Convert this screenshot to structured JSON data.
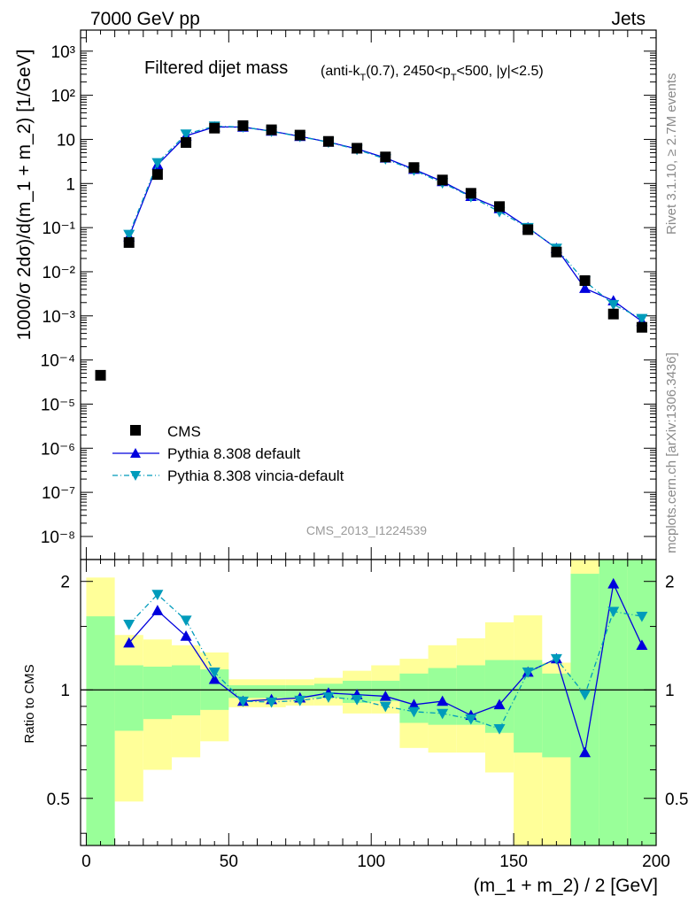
{
  "header": {
    "left": "7000 GeV pp",
    "right": "Jets"
  },
  "side": {
    "rivet": "Rivet 3.1.10, ≥ 2.7M events",
    "mcplots": "mcplots.cern.ch [arXiv:1306.3436]"
  },
  "watermark": "CMS_2013_I1224539",
  "colors": {
    "cms": "#000000",
    "pythia": "#0000dd",
    "vincia": "#009bbb",
    "band_yellow": "#ffff99",
    "band_green": "#99ff99"
  },
  "chart_data": [
    {
      "type": "scatter",
      "title": "Filtered dijet mass",
      "title_suffix": "(anti-k_T(0.7), 2450<p_T<500, |y|<2.5)",
      "ylabel": "1000/σ 2dσ)/d(m_1 + m_2) [1/GeV]",
      "xlim": [
        -2,
        200
      ],
      "ylim": [
        3e-09,
        3000
      ],
      "yscale": "log",
      "yticks": [
        "10⁻⁸",
        "10⁻⁷",
        "10⁻⁶",
        "10⁻⁵",
        "10⁻⁴",
        "10⁻³",
        "10⁻²",
        "10⁻¹",
        "1",
        "10",
        "10²",
        "10³"
      ],
      "legend": [
        "CMS",
        "Pythia 8.308 default",
        "Pythia 8.308 vincia-default"
      ],
      "legend_position": "bottom-left",
      "x": [
        5,
        15,
        25,
        35,
        45,
        55,
        65,
        75,
        85,
        95,
        105,
        115,
        125,
        135,
        145,
        155,
        165,
        175,
        185,
        195
      ],
      "series": [
        {
          "name": "CMS",
          "marker": "square",
          "values": [
            4.5e-05,
            0.046,
            1.6,
            8.5,
            18,
            20.5,
            16.5,
            12.5,
            9.0,
            6.3,
            4.0,
            2.3,
            1.2,
            0.6,
            0.3,
            0.09,
            0.028,
            0.0063,
            0.0011,
            0.00055
          ]
        },
        {
          "name": "Pythia 8.308 default",
          "marker": "triangle-up",
          "line": "solid",
          "x": [
            15,
            25,
            35,
            45,
            55,
            65,
            75,
            85,
            95,
            105,
            115,
            125,
            135,
            145,
            155,
            165,
            175,
            185,
            195
          ],
          "values": [
            0.062,
            2.65,
            12.0,
            19.2,
            19.0,
            15.4,
            11.7,
            8.7,
            6.1,
            3.8,
            2.1,
            1.11,
            0.51,
            0.27,
            0.1,
            0.034,
            0.0042,
            0.0022,
            0.00075
          ]
        },
        {
          "name": "Pythia 8.308 vincia-default",
          "marker": "triangle-down",
          "line": "dash-dot",
          "x": [
            15,
            25,
            35,
            45,
            55,
            65,
            75,
            85,
            95,
            105,
            115,
            125,
            135,
            145,
            155,
            165,
            175,
            185,
            195
          ],
          "values": [
            0.07,
            2.95,
            13.2,
            20.0,
            19.1,
            15.2,
            11.6,
            8.6,
            5.9,
            3.6,
            2.0,
            1.03,
            0.5,
            0.23,
            0.1,
            0.034,
            0.0061,
            0.0018,
            0.00087
          ]
        }
      ]
    },
    {
      "type": "line",
      "ylabel": "Ratio to CMS",
      "xlabel": "(m_1 + m_2) / 2 [GeV]",
      "xlim": [
        -2,
        200
      ],
      "ylim": [
        0.37,
        2.3
      ],
      "yscale": "log",
      "yticks": [
        "0.5",
        "1",
        "2"
      ],
      "xticks": [
        "0",
        "50",
        "100",
        "150",
        "200"
      ],
      "x": [
        15,
        25,
        35,
        45,
        55,
        65,
        75,
        85,
        95,
        105,
        115,
        125,
        135,
        145,
        155,
        165,
        175,
        185,
        195
      ],
      "series": [
        {
          "name": "Pythia 8.308 default",
          "values": [
            1.35,
            1.66,
            1.41,
            1.07,
            0.93,
            0.94,
            0.95,
            0.98,
            0.97,
            0.96,
            0.91,
            0.93,
            0.85,
            0.91,
            1.12,
            1.22,
            0.67,
            1.97,
            1.33
          ]
        },
        {
          "name": "Pythia 8.308 vincia-default",
          "values": [
            1.52,
            1.84,
            1.56,
            1.12,
            0.93,
            0.925,
            0.935,
            0.955,
            0.94,
            0.9,
            0.87,
            0.86,
            0.83,
            0.78,
            1.12,
            1.22,
            0.97,
            1.65,
            1.6
          ]
        }
      ],
      "bands": {
        "x_edges": [
          0,
          10,
          20,
          30,
          40,
          50,
          60,
          70,
          80,
          90,
          100,
          110,
          120,
          130,
          140,
          150,
          160,
          170,
          180,
          190,
          200
        ],
        "yellow": [
          [
            0.37,
            2.05
          ],
          [
            0.49,
            1.42
          ],
          [
            0.6,
            1.38
          ],
          [
            0.65,
            1.33
          ],
          [
            0.72,
            1.27
          ],
          [
            0.895,
            1.07
          ],
          [
            0.895,
            1.07
          ],
          [
            0.905,
            1.07
          ],
          [
            0.905,
            1.08
          ],
          [
            0.86,
            1.13
          ],
          [
            0.86,
            1.17
          ],
          [
            0.69,
            1.22
          ],
          [
            0.67,
            1.33
          ],
          [
            0.67,
            1.39
          ],
          [
            0.59,
            1.54
          ],
          [
            0.37,
            1.61
          ],
          [
            0.37,
            1.19
          ],
          [
            0.37,
            2.3
          ],
          [
            0.37,
            2.3
          ],
          [
            0.37,
            2.3
          ]
        ],
        "green": [
          [
            0.37,
            1.6
          ],
          [
            0.77,
            1.17
          ],
          [
            0.83,
            1.16
          ],
          [
            0.85,
            1.17
          ],
          [
            0.88,
            1.14
          ],
          [
            0.95,
            1.03
          ],
          [
            0.95,
            1.03
          ],
          [
            0.95,
            1.03
          ],
          [
            0.95,
            1.04
          ],
          [
            0.92,
            1.06
          ],
          [
            0.93,
            1.06
          ],
          [
            0.81,
            1.11
          ],
          [
            0.8,
            1.15
          ],
          [
            0.8,
            1.17
          ],
          [
            0.76,
            1.21
          ],
          [
            0.67,
            1.21
          ],
          [
            0.65,
            1.11
          ],
          [
            0.37,
            2.1
          ],
          [
            0.37,
            2.3
          ],
          [
            0.37,
            2.3
          ]
        ]
      }
    }
  ]
}
